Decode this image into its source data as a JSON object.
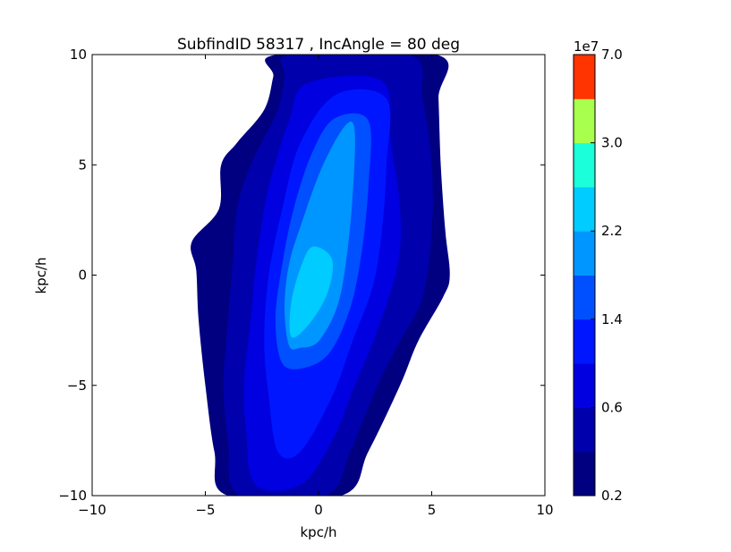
{
  "chart_data": {
    "type": "heatmap",
    "subtype": "filled-contour",
    "title": "SubfindID 58317 , IncAngle = 80 deg",
    "xlabel": "kpc/h",
    "ylabel": "kpc/h",
    "xlim": [
      -10,
      10
    ],
    "ylim": [
      -10,
      10
    ],
    "xticks": [
      -10,
      -5,
      0,
      5,
      10
    ],
    "yticks": [
      -10,
      -5,
      0,
      5,
      10
    ],
    "xtick_labels": [
      "−10",
      "−5",
      "0",
      "5",
      "10"
    ],
    "ytick_labels": [
      "−10",
      "−5",
      "0",
      "5",
      "10"
    ],
    "colorbar": {
      "multiplier_label": "1e7",
      "tick_labels": [
        "0.2",
        "0.6",
        "1.4",
        "2.2",
        "3.0",
        "7.0"
      ],
      "levels": [
        0.2,
        0.4,
        0.6,
        1.0,
        1.4,
        1.8,
        2.2,
        2.6,
        3.0,
        5.0,
        7.0
      ],
      "colors": [
        "#000080",
        "#0000AD",
        "#0000E0",
        "#0016FF",
        "#0050FF",
        "#0096FF",
        "#00CCFF",
        "#1CFFDB",
        "#A9FF4D",
        "#FF3400"
      ]
    },
    "contours": [
      {
        "level_index": 0,
        "label": "0.2-0.4",
        "points": [
          [
            -4.0,
            -10.0
          ],
          [
            -4.6,
            -8.0
          ],
          [
            -5.0,
            -5.0
          ],
          [
            -5.3,
            -2.0
          ],
          [
            -5.4,
            0.2
          ],
          [
            -5.6,
            1.5
          ],
          [
            -4.4,
            3.0
          ],
          [
            -4.3,
            5.0
          ],
          [
            -3.6,
            6.0
          ],
          [
            -2.4,
            7.5
          ],
          [
            -2.0,
            9.0
          ],
          [
            -1.8,
            10.0
          ],
          [
            5.2,
            10.0
          ],
          [
            5.3,
            8.0
          ],
          [
            5.4,
            5.0
          ],
          [
            5.6,
            2.0
          ],
          [
            5.8,
            0.0
          ],
          [
            5.5,
            -1.0
          ],
          [
            4.4,
            -3.0
          ],
          [
            3.6,
            -5.0
          ],
          [
            2.2,
            -8.0
          ],
          [
            1.0,
            -10.0
          ]
        ]
      },
      {
        "level_index": 1,
        "label": "0.4-0.6",
        "points": [
          [
            -3.5,
            -10.0
          ],
          [
            -4.0,
            -7.5
          ],
          [
            -4.2,
            -5.0
          ],
          [
            -4.0,
            -2.0
          ],
          [
            -3.8,
            0.5
          ],
          [
            -3.6,
            3.0
          ],
          [
            -3.0,
            5.0
          ],
          [
            -1.8,
            7.5
          ],
          [
            -1.5,
            9.0
          ],
          [
            -1.2,
            10.0
          ],
          [
            4.0,
            10.0
          ],
          [
            4.6,
            8.0
          ],
          [
            5.0,
            5.0
          ],
          [
            5.0,
            2.0
          ],
          [
            4.6,
            -1.0
          ],
          [
            3.6,
            -3.0
          ],
          [
            2.6,
            -5.0
          ],
          [
            1.4,
            -8.0
          ],
          [
            0.3,
            -10.0
          ]
        ]
      },
      {
        "level_index": 2,
        "label": "0.6-1.0",
        "points": [
          [
            -2.8,
            -9.5
          ],
          [
            -3.2,
            -7.0
          ],
          [
            -3.3,
            -5.0
          ],
          [
            -3.0,
            -2.0
          ],
          [
            -2.7,
            1.0
          ],
          [
            -2.2,
            4.0
          ],
          [
            -1.3,
            7.0
          ],
          [
            -0.5,
            8.7
          ],
          [
            2.8,
            8.8
          ],
          [
            3.2,
            6.0
          ],
          [
            3.6,
            3.0
          ],
          [
            3.5,
            0.5
          ],
          [
            2.6,
            -2.5
          ],
          [
            1.6,
            -5.0
          ],
          [
            0.6,
            -7.5
          ],
          [
            -0.8,
            -9.5
          ]
        ]
      },
      {
        "level_index": 3,
        "label": "1.0-1.4",
        "points": [
          [
            -1.8,
            -8.0
          ],
          [
            -2.2,
            -5.5
          ],
          [
            -2.4,
            -3.0
          ],
          [
            -2.2,
            0.0
          ],
          [
            -1.6,
            3.0
          ],
          [
            -0.8,
            6.0
          ],
          [
            0.8,
            8.2
          ],
          [
            3.0,
            8.0
          ],
          [
            3.0,
            5.0
          ],
          [
            2.8,
            2.0
          ],
          [
            2.4,
            -0.5
          ],
          [
            1.5,
            -3.0
          ],
          [
            0.6,
            -5.5
          ],
          [
            -0.8,
            -8.0
          ]
        ]
      },
      {
        "level_index": 4,
        "label": "1.4-1.8",
        "points": [
          [
            -1.6,
            -4.0
          ],
          [
            -1.9,
            -2.0
          ],
          [
            -1.6,
            0.5
          ],
          [
            -1.1,
            3.0
          ],
          [
            -0.3,
            5.5
          ],
          [
            0.7,
            7.1
          ],
          [
            2.2,
            7.0
          ],
          [
            2.2,
            4.0
          ],
          [
            1.9,
            1.0
          ],
          [
            1.4,
            -1.5
          ],
          [
            0.5,
            -3.5
          ],
          [
            -0.6,
            -4.2
          ]
        ]
      },
      {
        "level_index": 5,
        "label": "1.8-2.2",
        "points": [
          [
            -1.3,
            -3.2
          ],
          [
            -1.5,
            -1.5
          ],
          [
            -1.3,
            0.5
          ],
          [
            -0.7,
            2.5
          ],
          [
            0.2,
            5.0
          ],
          [
            1.2,
            6.8
          ],
          [
            1.6,
            6.5
          ],
          [
            1.5,
            3.5
          ],
          [
            1.2,
            0.5
          ],
          [
            0.8,
            -1.5
          ],
          [
            0.0,
            -3.0
          ],
          [
            -0.8,
            -3.3
          ]
        ]
      },
      {
        "level_index": 6,
        "label": "2.2-2.6",
        "points": [
          [
            -1.2,
            -2.8
          ],
          [
            -1.2,
            -1.2
          ],
          [
            -0.7,
            0.6
          ],
          [
            -0.2,
            1.3
          ],
          [
            0.6,
            0.7
          ],
          [
            0.4,
            -0.8
          ],
          [
            -0.4,
            -2.2
          ]
        ]
      }
    ]
  }
}
